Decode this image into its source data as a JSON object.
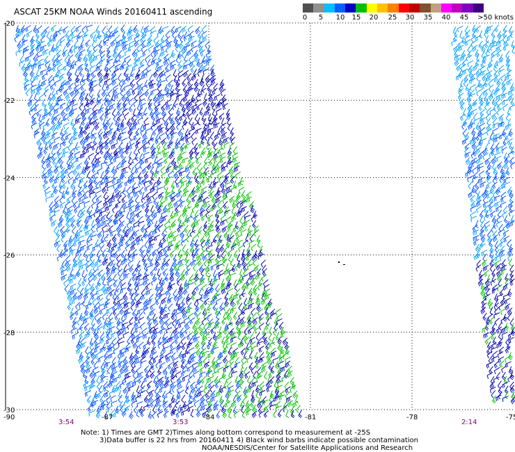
{
  "title": "ASCAT 25KM NOAA Winds 20160411 ascending",
  "colorbar": {
    "colors": [
      "#505050",
      "#909090",
      "#00c0ff",
      "#0060ff",
      "#0000c0",
      "#00c000",
      "#ffff00",
      "#ffc000",
      "#ff8000",
      "#ff0000",
      "#c00000",
      "#805030",
      "#c0a080",
      "#ff00ff",
      "#c000c0",
      "#8000c0",
      "#400080"
    ],
    "labels": [
      "0",
      "5",
      "10",
      "15",
      "20",
      "25",
      "30",
      "35",
      "40",
      "45",
      ">50 knots"
    ]
  },
  "axes": {
    "lat_labels": [
      "-20",
      "-22",
      "-24",
      "-26",
      "-28",
      "-30"
    ],
    "lon_labels": [
      "-90",
      "-87",
      "-84",
      "-81",
      "-78",
      "-75"
    ]
  },
  "times": [
    "3:54",
    "3:53",
    "2:14"
  ],
  "notes": [
    "Note: 1) Times are GMT 2)Times along bottom correspond to measurement at -25S",
    "3)Data buffer is 22 hrs from 20160411 4) Black wind barbs indicate possible contamination",
    "NOAA/NESDIS/Center for Satellite Applications and Research"
  ],
  "wind_colors": {
    "light": "#00a0ff",
    "mid": "#0050ff",
    "strong": "#0000b0",
    "green": "#00c000"
  }
}
